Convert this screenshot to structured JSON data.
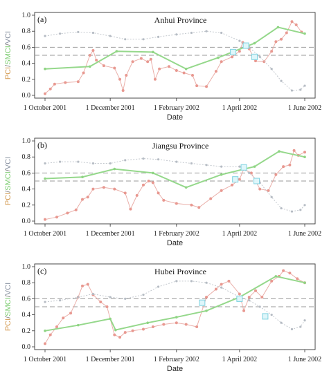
{
  "colors": {
    "pci": "#e8a6a0",
    "smci": "#95d88b",
    "vci": "#b6bcc4",
    "marker": "#7ed2e0"
  },
  "chart_data": [
    {
      "type": "scatter",
      "panel_label": "(a)",
      "title": "Anhui Province",
      "xlabel": "Date",
      "ylabel": "PCI/SMCI/VCI",
      "ylabel_parts": [
        "PCI",
        "SMCI",
        "VCI"
      ],
      "ylim": [
        0,
        1
      ],
      "yticks": [
        "0.0",
        "0.2",
        "0.4",
        "0.6",
        "0.8",
        "1.0"
      ],
      "x_ticks": [
        "1 October 2001",
        "1 December 2001",
        "1 February 2002",
        "1 April 2002",
        "1 June 2002"
      ],
      "xlim": [
        "2001-10-01",
        "2002-06-01"
      ],
      "reference_lines": [
        0.6,
        0.5
      ],
      "series": [
        {
          "name": "PCI",
          "style": "points",
          "points": [
            [
              "2001-10-01",
              0.02
            ],
            [
              "2001-10-06",
              0.08
            ],
            [
              "2001-10-10",
              0.14
            ],
            [
              "2001-10-20",
              0.16
            ],
            [
              "2001-11-01",
              0.17
            ],
            [
              "2001-11-06",
              0.28
            ],
            [
              "2001-11-12",
              0.5
            ],
            [
              "2001-11-15",
              0.56
            ],
            [
              "2001-11-18",
              0.44
            ],
            [
              "2001-11-25",
              0.37
            ],
            [
              "2001-12-05",
              0.34
            ],
            [
              "2001-12-10",
              0.2
            ],
            [
              "2001-12-13",
              0.06
            ],
            [
              "2001-12-16",
              0.25
            ],
            [
              "2001-12-22",
              0.42
            ],
            [
              "2001-12-30",
              0.46
            ],
            [
              "2002-01-05",
              0.42
            ],
            [
              "2002-01-08",
              0.45
            ],
            [
              "2002-01-12",
              0.2
            ],
            [
              "2002-01-16",
              0.33
            ],
            [
              "2002-01-25",
              0.36
            ],
            [
              "2002-02-01",
              0.31
            ],
            [
              "2002-02-08",
              0.28
            ],
            [
              "2002-02-16",
              0.25
            ],
            [
              "2002-02-20",
              0.12
            ],
            [
              "2002-03-01",
              0.11
            ],
            [
              "2002-03-10",
              0.3
            ],
            [
              "2002-03-15",
              0.42
            ],
            [
              "2002-03-25",
              0.48
            ],
            [
              "2002-04-01",
              0.55
            ],
            [
              "2002-04-04",
              0.66
            ],
            [
              "2002-04-10",
              0.58
            ],
            [
              "2002-04-16",
              0.43
            ],
            [
              "2002-04-24",
              0.42
            ],
            [
              "2002-05-01",
              0.55
            ],
            [
              "2002-05-05",
              0.67
            ],
            [
              "2002-05-10",
              0.7
            ],
            [
              "2002-05-15",
              0.78
            ],
            [
              "2002-05-20",
              0.92
            ],
            [
              "2002-05-24",
              0.88
            ],
            [
              "2002-05-29",
              0.79
            ]
          ]
        },
        {
          "name": "VCI",
          "style": "dotted",
          "points": [
            [
              "2001-10-01",
              0.74
            ],
            [
              "2001-10-15",
              0.77
            ],
            [
              "2001-11-01",
              0.79
            ],
            [
              "2001-11-15",
              0.78
            ],
            [
              "2001-12-01",
              0.74
            ],
            [
              "2001-12-15",
              0.7
            ],
            [
              "2002-01-01",
              0.7
            ],
            [
              "2002-01-15",
              0.73
            ],
            [
              "2002-02-01",
              0.76
            ],
            [
              "2002-02-15",
              0.78
            ],
            [
              "2002-03-01",
              0.8
            ],
            [
              "2002-03-15",
              0.78
            ],
            [
              "2002-04-01",
              0.68
            ],
            [
              "2002-04-10",
              0.6
            ],
            [
              "2002-04-20",
              0.48
            ],
            [
              "2002-05-01",
              0.33
            ],
            [
              "2002-05-10",
              0.18
            ],
            [
              "2002-05-20",
              0.06
            ],
            [
              "2002-05-28",
              0.07
            ],
            [
              "2002-06-01",
              0.12
            ]
          ]
        },
        {
          "name": "SMCI",
          "style": "line",
          "points": [
            [
              "2001-10-01",
              0.33
            ],
            [
              "2001-11-12",
              0.36
            ],
            [
              "2001-12-07",
              0.55
            ],
            [
              "2002-01-10",
              0.54
            ],
            [
              "2002-02-10",
              0.33
            ],
            [
              "2002-03-12",
              0.47
            ],
            [
              "2002-04-15",
              0.65
            ],
            [
              "2002-05-07",
              0.85
            ],
            [
              "2002-06-01",
              0.77
            ]
          ]
        }
      ],
      "markers": [
        [
          "2002-03-26",
          0.54
        ],
        [
          "2002-04-07",
          0.62
        ],
        [
          "2002-04-15",
          0.48
        ]
      ]
    },
    {
      "type": "scatter",
      "panel_label": "(b)",
      "title": "Jiangsu Province",
      "xlabel": "Date",
      "ylabel": "PCI/SMCI/VCI",
      "ylabel_parts": [
        "PCI",
        "SMCI",
        "VCI"
      ],
      "ylim": [
        0,
        1
      ],
      "yticks": [
        "0.0",
        "0.2",
        "0.4",
        "0.6",
        "0.8",
        "1.0"
      ],
      "x_ticks": [
        "1 October 2001",
        "1 December 2001",
        "1 February 2002",
        "1 April 2002",
        "1 June 2002"
      ],
      "xlim": [
        "2001-10-01",
        "2002-06-01"
      ],
      "reference_lines": [
        0.6,
        0.5
      ],
      "series": [
        {
          "name": "PCI",
          "style": "points",
          "points": [
            [
              "2001-10-01",
              0.02
            ],
            [
              "2001-10-12",
              0.05
            ],
            [
              "2001-10-22",
              0.1
            ],
            [
              "2001-10-30",
              0.14
            ],
            [
              "2001-11-05",
              0.27
            ],
            [
              "2001-11-10",
              0.3
            ],
            [
              "2001-11-15",
              0.4
            ],
            [
              "2001-11-25",
              0.42
            ],
            [
              "2001-12-05",
              0.4
            ],
            [
              "2001-12-15",
              0.35
            ],
            [
              "2001-12-20",
              0.15
            ],
            [
              "2001-12-26",
              0.32
            ],
            [
              "2002-01-01",
              0.45
            ],
            [
              "2002-01-06",
              0.5
            ],
            [
              "2002-01-10",
              0.48
            ],
            [
              "2002-01-15",
              0.35
            ],
            [
              "2002-01-20",
              0.26
            ],
            [
              "2002-02-01",
              0.22
            ],
            [
              "2002-02-15",
              0.2
            ],
            [
              "2002-02-22",
              0.17
            ],
            [
              "2002-03-05",
              0.28
            ],
            [
              "2002-03-15",
              0.38
            ],
            [
              "2002-03-25",
              0.45
            ],
            [
              "2002-04-01",
              0.52
            ],
            [
              "2002-04-05",
              0.65
            ],
            [
              "2002-04-12",
              0.6
            ],
            [
              "2002-04-20",
              0.4
            ],
            [
              "2002-04-28",
              0.38
            ],
            [
              "2002-05-05",
              0.58
            ],
            [
              "2002-05-12",
              0.68
            ],
            [
              "2002-05-18",
              0.7
            ],
            [
              "2002-05-22",
              0.88
            ],
            [
              "2002-05-26",
              0.82
            ],
            [
              "2002-06-01",
              0.86
            ]
          ]
        },
        {
          "name": "VCI",
          "style": "dotted",
          "points": [
            [
              "2001-10-01",
              0.72
            ],
            [
              "2001-10-15",
              0.74
            ],
            [
              "2001-11-01",
              0.74
            ],
            [
              "2001-11-15",
              0.72
            ],
            [
              "2001-12-01",
              0.72
            ],
            [
              "2001-12-15",
              0.76
            ],
            [
              "2002-01-01",
              0.78
            ],
            [
              "2002-01-15",
              0.77
            ],
            [
              "2002-02-01",
              0.74
            ],
            [
              "2002-02-15",
              0.72
            ],
            [
              "2002-03-01",
              0.7
            ],
            [
              "2002-03-15",
              0.68
            ],
            [
              "2002-04-01",
              0.68
            ],
            [
              "2002-04-10",
              0.6
            ],
            [
              "2002-04-20",
              0.48
            ],
            [
              "2002-05-01",
              0.3
            ],
            [
              "2002-05-10",
              0.16
            ],
            [
              "2002-05-20",
              0.12
            ],
            [
              "2002-05-28",
              0.14
            ],
            [
              "2002-06-01",
              0.2
            ]
          ]
        },
        {
          "name": "SMCI",
          "style": "line",
          "points": [
            [
              "2001-10-01",
              0.53
            ],
            [
              "2001-11-05",
              0.55
            ],
            [
              "2001-12-05",
              0.65
            ],
            [
              "2002-01-10",
              0.6
            ],
            [
              "2002-02-10",
              0.42
            ],
            [
              "2002-03-15",
              0.58
            ],
            [
              "2002-04-15",
              0.68
            ],
            [
              "2002-05-08",
              0.87
            ],
            [
              "2002-06-01",
              0.8
            ]
          ]
        }
      ],
      "markers": [
        [
          "2002-03-28",
          0.52
        ],
        [
          "2002-04-05",
          0.67
        ],
        [
          "2002-04-17",
          0.5
        ]
      ]
    },
    {
      "type": "scatter",
      "panel_label": "(c)",
      "title": "Hubei Province",
      "xlabel": "Date",
      "ylabel": "PCI/SMCI/VCI",
      "ylabel_parts": [
        "PCI",
        "SMCI",
        "VCI"
      ],
      "ylim": [
        0,
        1
      ],
      "yticks": [
        "0.0",
        "0.2",
        "0.4",
        "0.6",
        "0.8",
        "1.0"
      ],
      "x_ticks": [
        "1 October 2001",
        "1 December 2001",
        "1 February 2002",
        "1 April 2002",
        "1 June 2002"
      ],
      "xlim": [
        "2001-10-01",
        "2002-06-01"
      ],
      "reference_lines": [
        0.6,
        0.5
      ],
      "series": [
        {
          "name": "PCI",
          "style": "points",
          "points": [
            [
              "2001-10-01",
              0.04
            ],
            [
              "2001-10-06",
              0.15
            ],
            [
              "2001-10-12",
              0.25
            ],
            [
              "2001-10-18",
              0.36
            ],
            [
              "2001-10-25",
              0.42
            ],
            [
              "2001-11-01",
              0.62
            ],
            [
              "2001-11-05",
              0.76
            ],
            [
              "2001-11-10",
              0.78
            ],
            [
              "2001-11-15",
              0.65
            ],
            [
              "2001-11-22",
              0.56
            ],
            [
              "2001-11-28",
              0.5
            ],
            [
              "2001-12-05",
              0.15
            ],
            [
              "2001-12-10",
              0.12
            ],
            [
              "2001-12-15",
              0.18
            ],
            [
              "2001-12-22",
              0.2
            ],
            [
              "2002-01-01",
              0.22
            ],
            [
              "2002-01-10",
              0.25
            ],
            [
              "2002-01-20",
              0.28
            ],
            [
              "2002-02-01",
              0.3
            ],
            [
              "2002-02-10",
              0.28
            ],
            [
              "2002-02-20",
              0.25
            ],
            [
              "2002-03-01",
              0.62
            ],
            [
              "2002-03-10",
              0.72
            ],
            [
              "2002-03-15",
              0.78
            ],
            [
              "2002-03-22",
              0.82
            ],
            [
              "2002-04-01",
              0.66
            ],
            [
              "2002-04-05",
              0.45
            ],
            [
              "2002-04-10",
              0.62
            ],
            [
              "2002-04-16",
              0.7
            ],
            [
              "2002-04-22",
              0.62
            ],
            [
              "2002-05-01",
              0.82
            ],
            [
              "2002-05-08",
              0.88
            ],
            [
              "2002-05-12",
              0.95
            ],
            [
              "2002-05-18",
              0.92
            ],
            [
              "2002-05-25",
              0.85
            ],
            [
              "2002-06-01",
              0.8
            ]
          ]
        },
        {
          "name": "VCI",
          "style": "dotted",
          "points": [
            [
              "2001-10-01",
              0.56
            ],
            [
              "2001-10-15",
              0.58
            ],
            [
              "2001-11-01",
              0.62
            ],
            [
              "2001-11-15",
              0.66
            ],
            [
              "2001-12-01",
              0.62
            ],
            [
              "2001-12-15",
              0.6
            ],
            [
              "2002-01-01",
              0.65
            ],
            [
              "2002-01-15",
              0.75
            ],
            [
              "2002-02-01",
              0.82
            ],
            [
              "2002-02-15",
              0.82
            ],
            [
              "2002-03-01",
              0.8
            ],
            [
              "2002-03-15",
              0.74
            ],
            [
              "2002-04-01",
              0.62
            ],
            [
              "2002-04-10",
              0.58
            ],
            [
              "2002-04-20",
              0.5
            ],
            [
              "2002-05-01",
              0.4
            ],
            [
              "2002-05-10",
              0.3
            ],
            [
              "2002-05-20",
              0.22
            ],
            [
              "2002-05-28",
              0.25
            ],
            [
              "2002-06-01",
              0.33
            ]
          ]
        },
        {
          "name": "SMCI",
          "style": "line",
          "points": [
            [
              "2001-10-01",
              0.2
            ],
            [
              "2001-11-01",
              0.27
            ],
            [
              "2001-12-01",
              0.35
            ],
            [
              "2001-12-06",
              0.21
            ],
            [
              "2002-01-05",
              0.3
            ],
            [
              "2002-02-01",
              0.37
            ],
            [
              "2002-03-01",
              0.45
            ],
            [
              "2002-04-01",
              0.62
            ],
            [
              "2002-05-05",
              0.88
            ],
            [
              "2002-06-01",
              0.8
            ]
          ]
        }
      ],
      "markers": [
        [
          "2002-02-25",
          0.55
        ],
        [
          "2002-04-01",
          0.6
        ],
        [
          "2002-04-25",
          0.38
        ]
      ]
    }
  ]
}
